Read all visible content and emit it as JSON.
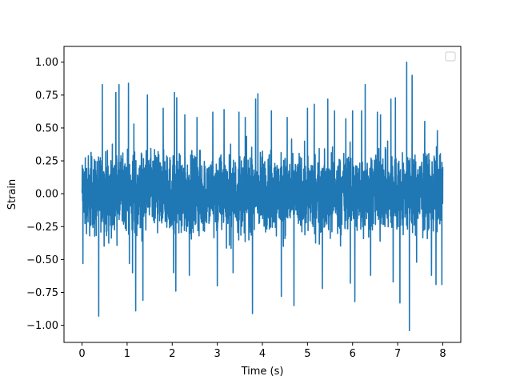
{
  "chart_data": {
    "type": "line",
    "title": "",
    "xlabel": "Time (s)",
    "ylabel": "Strain",
    "xlim": [
      -0.4,
      8.4
    ],
    "ylim": [
      -1.13,
      1.12
    ],
    "x_ticks": [
      0,
      1,
      2,
      3,
      4,
      5,
      6,
      7,
      8
    ],
    "x_tick_labels": [
      "0",
      "1",
      "2",
      "3",
      "4",
      "5",
      "6",
      "7",
      "8"
    ],
    "y_ticks": [
      -1.0,
      -0.75,
      -0.5,
      -0.25,
      0.0,
      0.25,
      0.5,
      0.75,
      1.0
    ],
    "y_tick_labels": [
      "−1.00",
      "−0.75",
      "−0.50",
      "−0.25",
      "0.00",
      "0.25",
      "0.50",
      "0.75",
      "1.00"
    ],
    "grid": false,
    "legend": {
      "placement": "top-right",
      "entries": []
    },
    "series": [
      {
        "color": "#1f77b4",
        "x_start": 0.0,
        "x_end": 8.0,
        "typical_band": [
          -0.45,
          0.45
        ],
        "peaks": [
          {
            "x": 0.02,
            "y": 0.56
          },
          {
            "x": 0.02,
            "y": -0.53
          },
          {
            "x": 0.37,
            "y": -0.93
          },
          {
            "x": 0.45,
            "y": 0.83
          },
          {
            "x": 0.75,
            "y": 0.77
          },
          {
            "x": 0.82,
            "y": 0.83
          },
          {
            "x": 1.03,
            "y": 0.84
          },
          {
            "x": 1.05,
            "y": -0.53
          },
          {
            "x": 1.12,
            "y": -0.6
          },
          {
            "x": 1.15,
            "y": 0.53
          },
          {
            "x": 1.19,
            "y": -0.89
          },
          {
            "x": 1.35,
            "y": -0.81
          },
          {
            "x": 1.45,
            "y": 0.75
          },
          {
            "x": 1.8,
            "y": 0.65
          },
          {
            "x": 2.05,
            "y": 0.77
          },
          {
            "x": 2.1,
            "y": 0.73
          },
          {
            "x": 2.03,
            "y": -0.6
          },
          {
            "x": 2.08,
            "y": -0.74
          },
          {
            "x": 2.28,
            "y": 0.6
          },
          {
            "x": 2.38,
            "y": -0.62
          },
          {
            "x": 2.55,
            "y": 0.58
          },
          {
            "x": 2.9,
            "y": 0.62
          },
          {
            "x": 3.0,
            "y": -0.7
          },
          {
            "x": 3.15,
            "y": 0.64
          },
          {
            "x": 3.35,
            "y": -0.6
          },
          {
            "x": 3.48,
            "y": 0.62
          },
          {
            "x": 3.62,
            "y": 0.58
          },
          {
            "x": 3.78,
            "y": -0.91
          },
          {
            "x": 3.85,
            "y": 0.72
          },
          {
            "x": 3.9,
            "y": 0.76
          },
          {
            "x": 4.2,
            "y": 0.63
          },
          {
            "x": 4.42,
            "y": -0.78
          },
          {
            "x": 4.55,
            "y": 0.58
          },
          {
            "x": 4.7,
            "y": -0.85
          },
          {
            "x": 5.0,
            "y": 0.65
          },
          {
            "x": 5.15,
            "y": 0.68
          },
          {
            "x": 5.33,
            "y": -0.72
          },
          {
            "x": 5.45,
            "y": 0.72
          },
          {
            "x": 5.6,
            "y": 0.63
          },
          {
            "x": 5.85,
            "y": 0.57
          },
          {
            "x": 5.95,
            "y": -0.68
          },
          {
            "x": 6.0,
            "y": 0.63
          },
          {
            "x": 6.05,
            "y": -0.82
          },
          {
            "x": 6.2,
            "y": 0.63
          },
          {
            "x": 6.28,
            "y": 0.83
          },
          {
            "x": 6.4,
            "y": -0.62
          },
          {
            "x": 6.55,
            "y": 0.62
          },
          {
            "x": 6.62,
            "y": 0.6
          },
          {
            "x": 6.85,
            "y": 0.72
          },
          {
            "x": 6.9,
            "y": -0.67
          },
          {
            "x": 6.95,
            "y": 0.73
          },
          {
            "x": 7.05,
            "y": -0.83
          },
          {
            "x": 7.2,
            "y": 1.0
          },
          {
            "x": 7.26,
            "y": -1.04
          },
          {
            "x": 7.32,
            "y": 0.9
          },
          {
            "x": 7.42,
            "y": -0.52
          },
          {
            "x": 7.6,
            "y": 0.55
          },
          {
            "x": 7.75,
            "y": -0.62
          },
          {
            "x": 7.85,
            "y": -0.69
          },
          {
            "x": 7.88,
            "y": 0.48
          },
          {
            "x": 7.98,
            "y": -0.69
          }
        ]
      }
    ]
  }
}
